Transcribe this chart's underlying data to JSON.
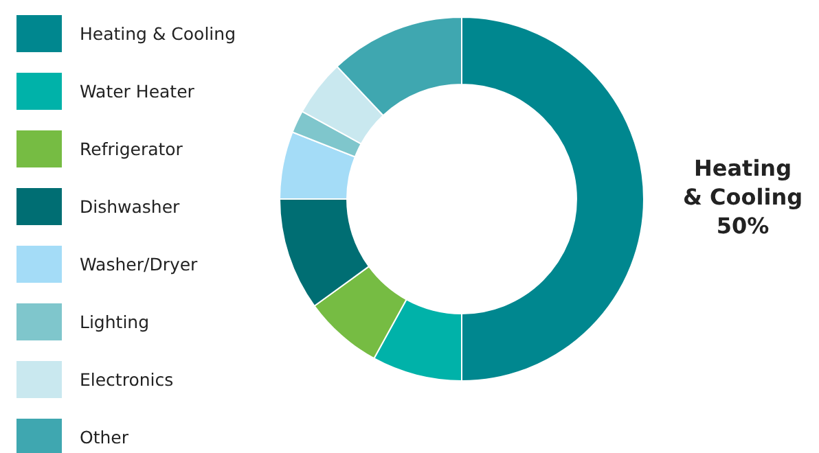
{
  "chart_data": {
    "type": "donut",
    "categories": [
      "Heating & Cooling",
      "Water Heater",
      "Refrigerator",
      "Dishwasher",
      "Washer/Dryer",
      "Lighting",
      "Electronics",
      "Other"
    ],
    "values": [
      50,
      8,
      7,
      10,
      6,
      2,
      5,
      12
    ],
    "colors": [
      "#00878f",
      "#00b2a9",
      "#76bc43",
      "#006e73",
      "#a4dcf7",
      "#7fc6cc",
      "#c9e8ef",
      "#3fa7b0"
    ],
    "value_labels": [
      "50%",
      null,
      null,
      null,
      null,
      null,
      null,
      null
    ],
    "legend": "left"
  }
}
